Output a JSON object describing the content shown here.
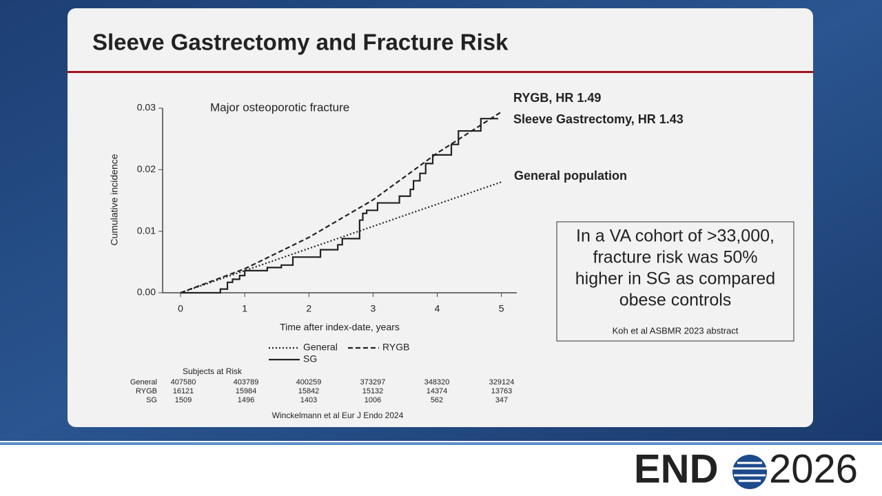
{
  "slide": {
    "title": "Sleeve Gastrectomy and Fracture Risk",
    "callout": {
      "lines": [
        "In a VA cohort of >33,000,",
        "fracture risk was 50%",
        "higher in SG as compared",
        "obese controls"
      ],
      "source": "Koh et al ASBMR 2023 abstract"
    },
    "logo": {
      "left": "END",
      "right": "2026"
    }
  },
  "chart_data": {
    "type": "line",
    "title": "Major osteoporotic fracture",
    "x_label": "Time after index-date, years",
    "y_label": "Cumulative incidence",
    "xlim": [
      -0.28,
      5.24
    ],
    "xticks": [
      0,
      1,
      2,
      3,
      4,
      5
    ],
    "ylim": [
      0,
      0.03
    ],
    "yticks": [
      {
        "value": 0,
        "label": "0.00"
      },
      0.01,
      0.02,
      0.03
    ],
    "series": [
      {
        "name": "General",
        "color": "#222",
        "dash": "dotted",
        "drawstyle": "linear",
        "x": [
          0,
          1,
          2,
          3,
          4,
          5
        ],
        "values": [
          0,
          0.0036,
          0.0072,
          0.0108,
          0.0144,
          0.018
        ]
      },
      {
        "name": "RYGB",
        "color": "#222",
        "dash": "dashed",
        "drawstyle": "linear",
        "x": [
          0,
          1,
          2,
          3,
          4,
          5
        ],
        "values": [
          0,
          0.0039,
          0.009,
          0.0151,
          0.0227,
          0.0294
        ]
      },
      {
        "name": "SG",
        "color": "#222",
        "dash": "solid",
        "drawstyle": "steps-post",
        "x": [
          0,
          0.62,
          0.73,
          0.81,
          0.92,
          1.0,
          1.35,
          1.57,
          1.75,
          2.18,
          2.45,
          2.52,
          2.79,
          2.84,
          2.9,
          3.07,
          3.41,
          3.58,
          3.63,
          3.73,
          3.82,
          3.93,
          4.22,
          4.33,
          4.68,
          4.95
        ],
        "values": [
          0,
          0.0006,
          0.0017,
          0.0022,
          0.0028,
          0.0036,
          0.0041,
          0.0045,
          0.0058,
          0.007,
          0.0078,
          0.0088,
          0.0118,
          0.0129,
          0.0134,
          0.0146,
          0.0157,
          0.0168,
          0.0182,
          0.0194,
          0.021,
          0.0224,
          0.0241,
          0.0263,
          0.0283,
          0.0283
        ]
      }
    ],
    "annotations": [
      "RYGB, HR 1.49",
      "Sleeve Gastrectomy, HR 1.43",
      "General population"
    ],
    "risk_table": {
      "title": "Subjects at Risk",
      "rows": [
        {
          "label": "General",
          "values": [
            407580,
            403789,
            400259,
            373297,
            348320,
            329124
          ]
        },
        {
          "label": "RYGB",
          "values": [
            16121,
            15984,
            15842,
            15132,
            14374,
            13763
          ]
        },
        {
          "label": "SG",
          "values": [
            1509,
            1496,
            1403,
            1006,
            562,
            347
          ]
        }
      ]
    },
    "source": "Winckelmann et al Eur J Endo 2024"
  }
}
